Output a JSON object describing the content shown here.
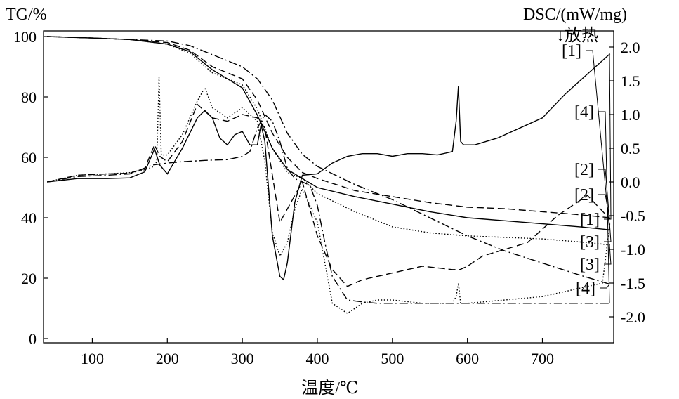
{
  "chart_data": {
    "type": "line",
    "title": "",
    "xlabel": "温度/℃",
    "ylabel_left": "TG/%",
    "ylabel_right": "DSC/(mW/mg)",
    "exo_label": "↓放热",
    "xlim": [
      35,
      795
    ],
    "ylim_left": [
      0,
      102
    ],
    "ylim_right": [
      -2.2,
      2.2
    ],
    "x_ticks": [
      100,
      200,
      300,
      400,
      500,
      600,
      700
    ],
    "y_left_ticks": [
      0,
      20,
      40,
      60,
      80,
      100
    ],
    "y_right_ticks": [
      2.0,
      1.5,
      1.0,
      0.5,
      0.0,
      -0.5,
      -1.0,
      -1.5,
      -2.0
    ],
    "y_right_tick_labels": [
      "2.0",
      "1.5",
      "1.0",
      "0.5",
      "0.0",
      "-0.5",
      "-1.0",
      "-1.5",
      "-2.0"
    ],
    "tg_series": [
      {
        "name": "[1]",
        "dash": "solid",
        "x": [
          40,
          100,
          150,
          200,
          230,
          260,
          280,
          300,
          320,
          340,
          360,
          380,
          400,
          450,
          500,
          550,
          600,
          650,
          700,
          750,
          790
        ],
        "y": [
          100,
          99.5,
          99,
          97.5,
          95,
          89,
          86,
          83,
          74,
          63,
          56,
          53,
          50,
          47,
          44.5,
          42,
          40,
          39,
          38,
          37,
          36
        ]
      },
      {
        "name": "[2]",
        "dash": "dashed",
        "x": [
          40,
          100,
          150,
          200,
          230,
          260,
          280,
          300,
          320,
          340,
          360,
          380,
          400,
          450,
          500,
          550,
          600,
          650,
          700,
          750,
          790
        ],
        "y": [
          100,
          99.5,
          99,
          98,
          95.5,
          90,
          88,
          86,
          79,
          68,
          60,
          55,
          53,
          49,
          47,
          45,
          43.5,
          43,
          42,
          41,
          40
        ]
      },
      {
        "name": "[3]",
        "dash": "dotted",
        "x": [
          40,
          100,
          150,
          200,
          230,
          260,
          280,
          300,
          320,
          340,
          360,
          380,
          400,
          450,
          500,
          550,
          600,
          650,
          700,
          750,
          790
        ],
        "y": [
          100,
          99.5,
          99,
          97.5,
          94.5,
          88,
          86,
          84,
          76,
          63,
          55,
          53,
          48,
          42,
          37,
          35,
          34,
          33.5,
          33,
          32,
          31
        ]
      },
      {
        "name": "[4]",
        "dash": "dashdot",
        "x": [
          40,
          100,
          150,
          200,
          230,
          260,
          280,
          300,
          320,
          340,
          360,
          380,
          400,
          450,
          500,
          550,
          600,
          650,
          700,
          750,
          790
        ],
        "y": [
          100,
          99.5,
          99,
          98.5,
          97,
          94,
          92,
          90,
          86,
          79,
          68,
          61,
          57,
          51,
          46,
          40,
          34,
          29,
          25,
          21,
          18
        ]
      }
    ],
    "dsc_series": [
      {
        "name": "[1]",
        "dash": "solid",
        "x": [
          40,
          80,
          120,
          150,
          170,
          183,
          190,
          200,
          220,
          240,
          250,
          260,
          270,
          280,
          290,
          300,
          310,
          320,
          325,
          330,
          340,
          350,
          355,
          360,
          370,
          380,
          400,
          420,
          440,
          460,
          480,
          500,
          520,
          540,
          560,
          580,
          585,
          588,
          591,
          595,
          610,
          640,
          670,
          700,
          730,
          760,
          790
        ],
        "y": [
          0.0,
          0.05,
          0.05,
          0.06,
          0.15,
          0.49,
          0.25,
          0.12,
          0.5,
          0.95,
          1.06,
          0.95,
          0.65,
          0.55,
          0.7,
          0.75,
          0.55,
          0.55,
          0.85,
          0.6,
          -0.8,
          -1.4,
          -1.45,
          -1.2,
          -0.3,
          0.1,
          0.12,
          0.28,
          0.38,
          0.42,
          0.42,
          0.38,
          0.42,
          0.42,
          0.4,
          0.45,
          0.9,
          1.42,
          0.6,
          0.55,
          0.55,
          0.65,
          0.8,
          0.95,
          1.3,
          1.6,
          1.9
        ]
      },
      {
        "name": "[2]",
        "dash": "dashed",
        "x": [
          40,
          80,
          120,
          150,
          170,
          183,
          190,
          200,
          220,
          240,
          260,
          280,
          300,
          320,
          330,
          340,
          350,
          370,
          380,
          400,
          420,
          440,
          460,
          480,
          500,
          540,
          580,
          590,
          600,
          620,
          650,
          680,
          700,
          720,
          740,
          760,
          790
        ],
        "y": [
          0.0,
          0.1,
          0.12,
          0.13,
          0.2,
          0.55,
          0.38,
          0.3,
          0.6,
          1.15,
          0.95,
          0.9,
          1.0,
          0.95,
          0.8,
          0.1,
          -0.6,
          -0.2,
          0.0,
          -0.8,
          -1.3,
          -1.55,
          -1.45,
          -1.4,
          -1.35,
          -1.25,
          -1.3,
          -1.3,
          -1.25,
          -1.1,
          -1.0,
          -0.9,
          -0.7,
          -0.5,
          -0.35,
          -0.2,
          -0.55
        ]
      },
      {
        "name": "[3]",
        "dash": "dotted",
        "x": [
          40,
          80,
          120,
          150,
          170,
          180,
          186,
          189,
          192,
          200,
          220,
          240,
          250,
          260,
          280,
          300,
          320,
          330,
          340,
          350,
          360,
          370,
          380,
          400,
          420,
          440,
          460,
          480,
          500,
          540,
          580,
          585,
          588,
          591,
          600,
          650,
          700,
          740,
          780,
          790
        ],
        "y": [
          0.0,
          0.1,
          0.12,
          0.14,
          0.18,
          0.22,
          0.3,
          1.55,
          0.4,
          0.4,
          0.7,
          1.2,
          1.4,
          1.1,
          0.95,
          1.1,
          0.9,
          0.3,
          -0.75,
          -1.1,
          -0.9,
          -0.4,
          -0.1,
          -0.6,
          -1.8,
          -1.95,
          -1.8,
          -1.75,
          -1.75,
          -1.8,
          -1.8,
          -1.7,
          -1.5,
          -1.8,
          -1.8,
          -1.75,
          -1.7,
          -1.6,
          -1.5,
          -0.6
        ]
      },
      {
        "name": "[4]",
        "dash": "dashdot",
        "x": [
          40,
          80,
          120,
          150,
          180,
          200,
          220,
          250,
          280,
          300,
          310,
          320,
          330,
          340,
          350,
          360,
          370,
          380,
          390,
          400,
          410,
          420,
          440,
          460,
          480,
          500,
          520,
          540,
          560,
          580,
          584,
          587,
          590,
          600,
          620,
          650,
          700,
          750,
          790
        ],
        "y": [
          0.0,
          0.08,
          0.1,
          0.12,
          0.25,
          0.28,
          0.3,
          0.32,
          0.33,
          0.38,
          0.45,
          0.8,
          1.0,
          0.9,
          0.6,
          0.2,
          0.05,
          0.0,
          -0.05,
          -0.35,
          -0.9,
          -1.4,
          -1.75,
          -1.78,
          -1.8,
          -1.8,
          -1.8,
          -1.8,
          -1.8,
          -1.8,
          -1.8,
          -1.8,
          -1.8,
          -1.8,
          -1.8,
          -1.8,
          -1.8,
          -1.8,
          -1.8
        ]
      }
    ],
    "right_labels": [
      {
        "text": "[1]",
        "target": "tg"
      },
      {
        "text": "[4]",
        "target": "dsc"
      },
      {
        "text": "[2]",
        "target": "dsc"
      },
      {
        "text": "[2]",
        "target": "tg"
      },
      {
        "text": "[1]",
        "target": "dsc"
      },
      {
        "text": "[3]",
        "target": "dsc"
      },
      {
        "text": "[3]",
        "target": "tg"
      },
      {
        "text": "[4]",
        "target": "tg"
      }
    ],
    "grid": false,
    "legend": "none"
  }
}
